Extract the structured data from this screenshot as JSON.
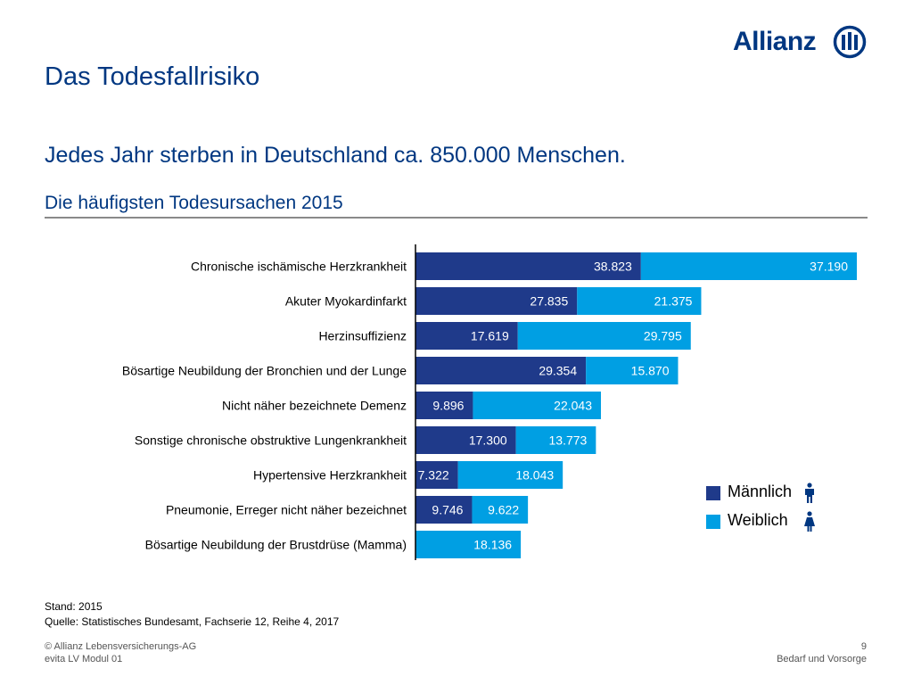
{
  "brand": {
    "name": "Allianz",
    "color": "#003781"
  },
  "title": "Das Todesfallrisiko",
  "subtitle": "Jedes Jahr sterben in Deutschland ca. 850.000 Menschen.",
  "chart_data": {
    "type": "bar",
    "orientation": "horizontal",
    "stacked": true,
    "title": "Die häufigsten Todesursachen 2015",
    "categories": [
      "Chronische ischämische Herzkrankheit",
      "Akuter Myokardinfarkt",
      "Herzinsuffizienz",
      "Bösartige Neubildung der Bronchien und der Lunge",
      "Nicht näher bezeichnete Demenz",
      "Sonstige chronische obstruktive Lungenkrankheit",
      "Hypertensive Herzkrankheit",
      "Pneumonie, Erreger nicht näher bezeichnet",
      "Bösartige Neubildung der Brustdrüse (Mamma)"
    ],
    "series": [
      {
        "name": "Männlich",
        "color": "#1f3a8a",
        "values": [
          38823,
          27835,
          17619,
          29354,
          9896,
          17300,
          7322,
          9746,
          null
        ],
        "labels": [
          "38.823",
          "27.835",
          "17.619",
          "29.354",
          "9.896",
          "17.300",
          "7.322",
          "9.746",
          ""
        ]
      },
      {
        "name": "Weiblich",
        "color": "#009fe3",
        "values": [
          37190,
          21375,
          29795,
          15870,
          22043,
          13773,
          18043,
          9622,
          18136
        ],
        "labels": [
          "37.190",
          "21.375",
          "29.795",
          "15.870",
          "22.043",
          "13.773",
          "18.043",
          "9.622",
          "18.136"
        ]
      }
    ],
    "xlabel": "",
    "ylabel": "",
    "xlim": [
      0,
      76013
    ],
    "legend_position": "bottom-right",
    "grid": false
  },
  "legend": {
    "male_label": "Männlich",
    "female_label": "Weiblich",
    "male_icon": "male-person-icon",
    "female_icon": "female-person-icon"
  },
  "source": {
    "date": "Stand: 2015",
    "reference": "Quelle: Statistisches Bundesamt, Fachserie 12, Reihe 4, 2017"
  },
  "footer": {
    "copyright": "© Allianz Lebensversicherungs-AG",
    "module": "evita LV Modul 01",
    "page_number": "9",
    "section": "Bedarf und Vorsorge"
  }
}
